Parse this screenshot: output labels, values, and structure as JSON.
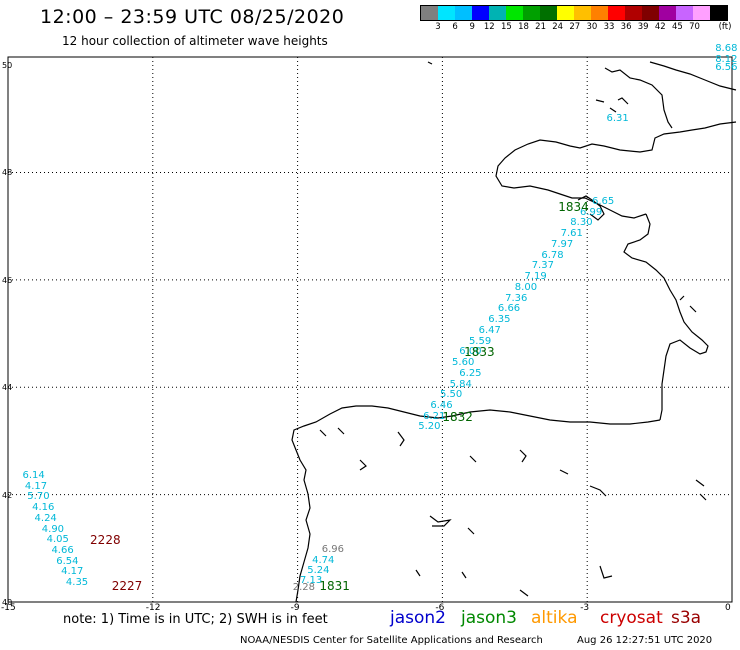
{
  "header": {
    "title": "12:00 – 23:59 UTC 08/25/2020",
    "subtitle": "12 hour collection of altimeter wave heights"
  },
  "legend": {
    "unit": "(ft)",
    "colors": [
      "#7f7f7f",
      "#00e5ff",
      "#00bfff",
      "#0000ff",
      "#00b3b3",
      "#00e600",
      "#00a000",
      "#007000",
      "#ffff00",
      "#ffbf00",
      "#ff8000",
      "#ff0000",
      "#b00000",
      "#800000",
      "#a000a0",
      "#c864ff",
      "#ffa0ff",
      "#000000"
    ],
    "values": [
      "3",
      "6",
      "9",
      "12",
      "15",
      "18",
      "21",
      "24",
      "27",
      "30",
      "33",
      "36",
      "39",
      "42",
      "45",
      "70"
    ]
  },
  "axes": {
    "lat_labels": [
      "50",
      "48",
      "46",
      "44",
      "42",
      "40"
    ],
    "lon_labels": [
      "-15",
      "-12",
      "-9",
      "-6",
      "-3",
      "0"
    ]
  },
  "map_data": {
    "track_1834": [
      {
        "lon": -2.6,
        "lat": 49.0,
        "text": "6.31"
      },
      {
        "lon": -0.15,
        "lat": 49.95,
        "text": "6.56"
      },
      {
        "lon": -0.05,
        "lat": 50.1,
        "text": "8.12"
      },
      {
        "lon": 0.0,
        "lat": 50.3,
        "text": "8.68"
      },
      {
        "lon": -2.9,
        "lat": 47.45,
        "text": "6.65"
      },
      {
        "lon": -3.15,
        "lat": 47.25,
        "text": "6.99"
      },
      {
        "lon": -3.35,
        "lat": 47.05,
        "text": "8.30"
      },
      {
        "lon": -3.55,
        "lat": 46.85,
        "text": "7.61"
      },
      {
        "lon": -3.75,
        "lat": 46.65,
        "text": "7.97"
      },
      {
        "lon": -3.95,
        "lat": 46.45,
        "text": "6.78"
      },
      {
        "lon": -4.15,
        "lat": 46.25,
        "text": "7.37"
      },
      {
        "lon": -4.3,
        "lat": 46.05,
        "text": "7.19"
      },
      {
        "lon": -4.5,
        "lat": 45.85,
        "text": "8.00"
      },
      {
        "lon": -4.7,
        "lat": 45.65,
        "text": "7.36"
      },
      {
        "lon": -4.85,
        "lat": 45.45,
        "text": "6.66"
      },
      {
        "lon": -5.05,
        "lat": 45.25,
        "text": "6.35"
      },
      {
        "lon": -5.25,
        "lat": 45.05,
        "text": "6.47"
      },
      {
        "lon": -5.45,
        "lat": 44.85,
        "text": "5.59"
      },
      {
        "lon": -5.65,
        "lat": 44.65,
        "text": "6.00"
      },
      {
        "lon": -5.8,
        "lat": 44.45,
        "text": "5.60"
      },
      {
        "lon": -5.65,
        "lat": 44.25,
        "text": "6.25"
      },
      {
        "lon": -5.85,
        "lat": 44.05,
        "text": "5.84"
      },
      {
        "lon": -6.05,
        "lat": 43.85,
        "text": "5.50"
      },
      {
        "lon": -6.25,
        "lat": 43.65,
        "text": "6.46"
      },
      {
        "lon": -6.4,
        "lat": 43.45,
        "text": "6.21"
      },
      {
        "lon": -6.5,
        "lat": 43.25,
        "text": "5.20"
      }
    ],
    "track_2228": [
      {
        "lon": -14.7,
        "lat": 42.35,
        "text": "6.14"
      },
      {
        "lon": -14.65,
        "lat": 42.15,
        "text": "4.17"
      },
      {
        "lon": -14.6,
        "lat": 41.95,
        "text": "5.70"
      },
      {
        "lon": -14.5,
        "lat": 41.75,
        "text": "4.16"
      },
      {
        "lon": -14.45,
        "lat": 41.55,
        "text": "4.24"
      },
      {
        "lon": -14.3,
        "lat": 41.35,
        "text": "4.90"
      },
      {
        "lon": -14.2,
        "lat": 41.15,
        "text": "4.05"
      },
      {
        "lon": -14.1,
        "lat": 40.95,
        "text": "4.66"
      },
      {
        "lon": -14.0,
        "lat": 40.75,
        "text": "6.54"
      },
      {
        "lon": -13.9,
        "lat": 40.55,
        "text": "4.17"
      },
      {
        "lon": -13.8,
        "lat": 40.35,
        "text": "4.35"
      }
    ],
    "track_1831": [
      {
        "lon": -8.5,
        "lat": 40.97,
        "text": "6.96"
      },
      {
        "lon": -8.7,
        "lat": 40.77,
        "text": "4.74"
      },
      {
        "lon": -8.8,
        "lat": 40.57,
        "text": "5.24"
      },
      {
        "lon": -8.95,
        "lat": 40.4,
        "text": "7.13"
      },
      {
        "lon": -9.1,
        "lat": 40.26,
        "text": "2.28"
      }
    ],
    "pass_labels": [
      {
        "lon": -3.6,
        "lat": 47.35,
        "text": "1834",
        "color": "#006400"
      },
      {
        "lon": -5.55,
        "lat": 44.65,
        "text": "1833",
        "color": "#006400"
      },
      {
        "lon": -6.0,
        "lat": 43.45,
        "text": "1832",
        "color": "#006400"
      },
      {
        "lon": -13.3,
        "lat": 41.15,
        "text": "2228",
        "color": "#800000"
      },
      {
        "lon": -12.85,
        "lat": 40.3,
        "text": "2227",
        "color": "#800000"
      },
      {
        "lon": -8.55,
        "lat": 40.3,
        "text": "1831",
        "color": "#006400"
      }
    ]
  },
  "footer": {
    "note": "note:  1) Time is in UTC;  2) SWH is in feet",
    "satellites": [
      {
        "name": "jason2",
        "color": "#0000cc"
      },
      {
        "name": "jason3",
        "color": "#008800"
      },
      {
        "name": "altika",
        "color": "#ff9900"
      },
      {
        "name": "cryosat",
        "color": "#cc0000"
      },
      {
        "name": "s3a",
        "color": "#990000"
      }
    ],
    "credit": "NOAA/NESDIS Center for Satellite Applications and Research",
    "timestamp": "Aug 26 12:27:51 UTC 2020"
  }
}
